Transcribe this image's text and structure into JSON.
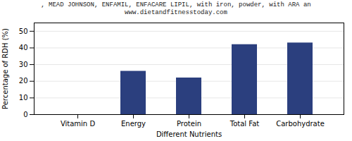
{
  "chart_data": {
    "type": "bar",
    "title": ", MEAD JOHNSON, ENFAMIL, ENFACARE LIPIL, with iron, powder, with ARA an",
    "subtitle": "www.dietandfitnesstoday.com",
    "xlabel": "Different Nutrients",
    "ylabel": "Percentage of RDH (%)",
    "categories": [
      "Vitamin D",
      "Energy",
      "Protein",
      "Total Fat",
      "Carbohydrate"
    ],
    "values": [
      0,
      26,
      22,
      42,
      43
    ],
    "color": "#2b3f7e",
    "ylim": [
      0,
      55
    ],
    "yticks": [
      0,
      10,
      20,
      30,
      40,
      50
    ],
    "grid": true
  }
}
